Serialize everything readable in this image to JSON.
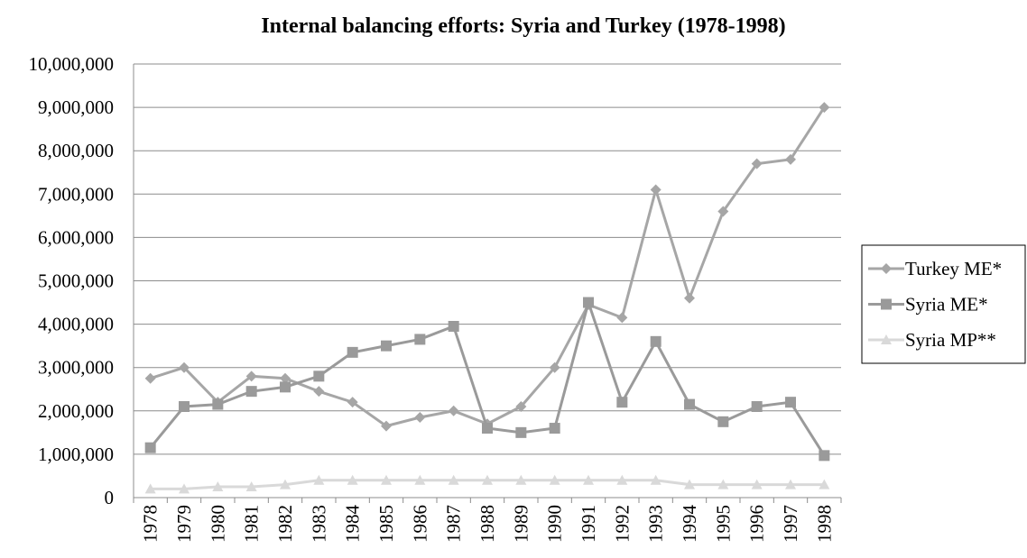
{
  "chart_data": {
    "type": "line",
    "title": "Internal balancing efforts: Syria and Turkey (1978-1998)",
    "categories": [
      "1978",
      "1979",
      "1980",
      "1981",
      "1982",
      "1983",
      "1984",
      "1985",
      "1986",
      "1987",
      "1988",
      "1989",
      "1990",
      "1991",
      "1992",
      "1993",
      "1994",
      "1995",
      "1996",
      "1997",
      "1998"
    ],
    "series": [
      {
        "name": "Turkey ME*",
        "color": "#a6a6a6",
        "marker": "diamond",
        "values": [
          2750000,
          3000000,
          2200000,
          2800000,
          2750000,
          2450000,
          2200000,
          1650000,
          1850000,
          2000000,
          1700000,
          2100000,
          3000000,
          4450000,
          4150000,
          7100000,
          4600000,
          6600000,
          7700000,
          7800000,
          9000000
        ]
      },
      {
        "name": "Syria ME*",
        "color": "#9a9a9a",
        "marker": "square",
        "values": [
          1150000,
          2100000,
          2150000,
          2450000,
          2550000,
          2800000,
          3350000,
          3500000,
          3650000,
          3950000,
          1600000,
          1500000,
          1600000,
          4500000,
          2200000,
          3600000,
          2150000,
          1750000,
          2100000,
          2200000,
          970000
        ]
      },
      {
        "name": "Syria MP**",
        "color": "#d9d9d9",
        "marker": "triangle",
        "values": [
          200000,
          200000,
          250000,
          250000,
          300000,
          400000,
          400000,
          400000,
          400000,
          400000,
          400000,
          400000,
          400000,
          400000,
          400000,
          400000,
          300000,
          300000,
          300000,
          300000,
          300000
        ]
      }
    ],
    "ylim": [
      0,
      10000000
    ],
    "yticks": [
      0,
      {
        "value": 1000000,
        "label": "1,000,000"
      },
      {
        "value": 2000000,
        "label": "2,000,000"
      },
      {
        "value": 3000000,
        "label": "3,000,000"
      },
      {
        "value": 4000000,
        "label": "4,000,000"
      },
      {
        "value": 5000000,
        "label": "5,000,000"
      },
      {
        "value": 6000000,
        "label": "6,000,000"
      },
      {
        "value": 7000000,
        "label": "7,000,000"
      },
      {
        "value": 8000000,
        "label": "8,000,000"
      },
      {
        "value": 9000000,
        "label": "9,000,000"
      },
      {
        "value": 10000000,
        "label": "10,000,000"
      }
    ],
    "grid": true,
    "legend": "right"
  }
}
